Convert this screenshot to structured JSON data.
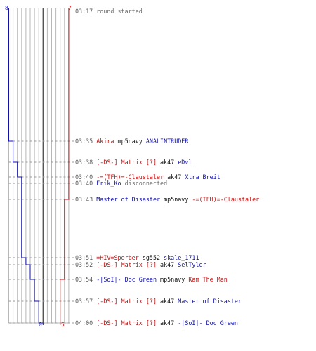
{
  "score": {
    "blue_start": "8",
    "red_start": "7",
    "blue_end": "0",
    "red_end": "5",
    "blue_start_value": 8,
    "red_start_value": 7,
    "blue_end_value": 0,
    "red_end_value": 5
  },
  "colors": {
    "blue": "#1010a8",
    "red": "#c01010",
    "grid": "#b8b8b8",
    "center": "#555555",
    "dashes": "#9a9a9a"
  },
  "events": [
    {
      "time": "03:17",
      "parts": [
        {
          "text": "round started",
          "color": "gray"
        }
      ]
    },
    {
      "time": "03:35",
      "parts": [
        {
          "text": "Akira",
          "color": "red"
        },
        {
          "text": "mp5navy",
          "color": "black"
        },
        {
          "text": "ANALINTRUDER",
          "color": "blue"
        }
      ]
    },
    {
      "time": "03:38",
      "parts": [
        {
          "text": "[-DS-] Matrix [?]",
          "color": "red"
        },
        {
          "text": "ak47",
          "color": "black"
        },
        {
          "text": "eDvl",
          "color": "blue"
        }
      ]
    },
    {
      "time": "03:40",
      "parts": [
        {
          "text": "-=(TFH)=-Claustaler",
          "color": "red"
        },
        {
          "text": "ak47",
          "color": "black"
        },
        {
          "text": "Xtra Breit",
          "color": "blue"
        }
      ]
    },
    {
      "time": "03:40",
      "parts": [
        {
          "text": "Erik_Ko",
          "color": "blue"
        },
        {
          "text": "disconnected",
          "color": "gray"
        }
      ]
    },
    {
      "time": "03:43",
      "parts": [
        {
          "text": "Master of Disaster",
          "color": "blue"
        },
        {
          "text": "mp5navy",
          "color": "black"
        },
        {
          "text": "-=(TFH)=-Claustaler",
          "color": "red"
        }
      ]
    },
    {
      "time": "03:51",
      "parts": [
        {
          "text": "=HIV=Sperber",
          "color": "red"
        },
        {
          "text": "sg552",
          "color": "black"
        },
        {
          "text": "skale_1711",
          "color": "blue"
        }
      ]
    },
    {
      "time": "03:52",
      "parts": [
        {
          "text": "[-DS-] Matrix [?]",
          "color": "red"
        },
        {
          "text": "ak47",
          "color": "black"
        },
        {
          "text": "SelTyler",
          "color": "blue"
        }
      ]
    },
    {
      "time": "03:54",
      "parts": [
        {
          "text": "-|SoI|- Doc Green",
          "color": "blue"
        },
        {
          "text": "mp5navy",
          "color": "black"
        },
        {
          "text": "Kam The Man",
          "color": "red"
        }
      ]
    },
    {
      "time": "03:57",
      "parts": [
        {
          "text": "[-DS-] Matrix [?]",
          "color": "red"
        },
        {
          "text": "ak47",
          "color": "black"
        },
        {
          "text": "Master of Disaster",
          "color": "blue"
        }
      ]
    },
    {
      "time": "04:00",
      "parts": [
        {
          "text": "[-DS-] Matrix [?]",
          "color": "red"
        },
        {
          "text": "ak47",
          "color": "black"
        },
        {
          "text": "-|SoI|- Doc Green",
          "color": "blue"
        }
      ]
    }
  ]
}
